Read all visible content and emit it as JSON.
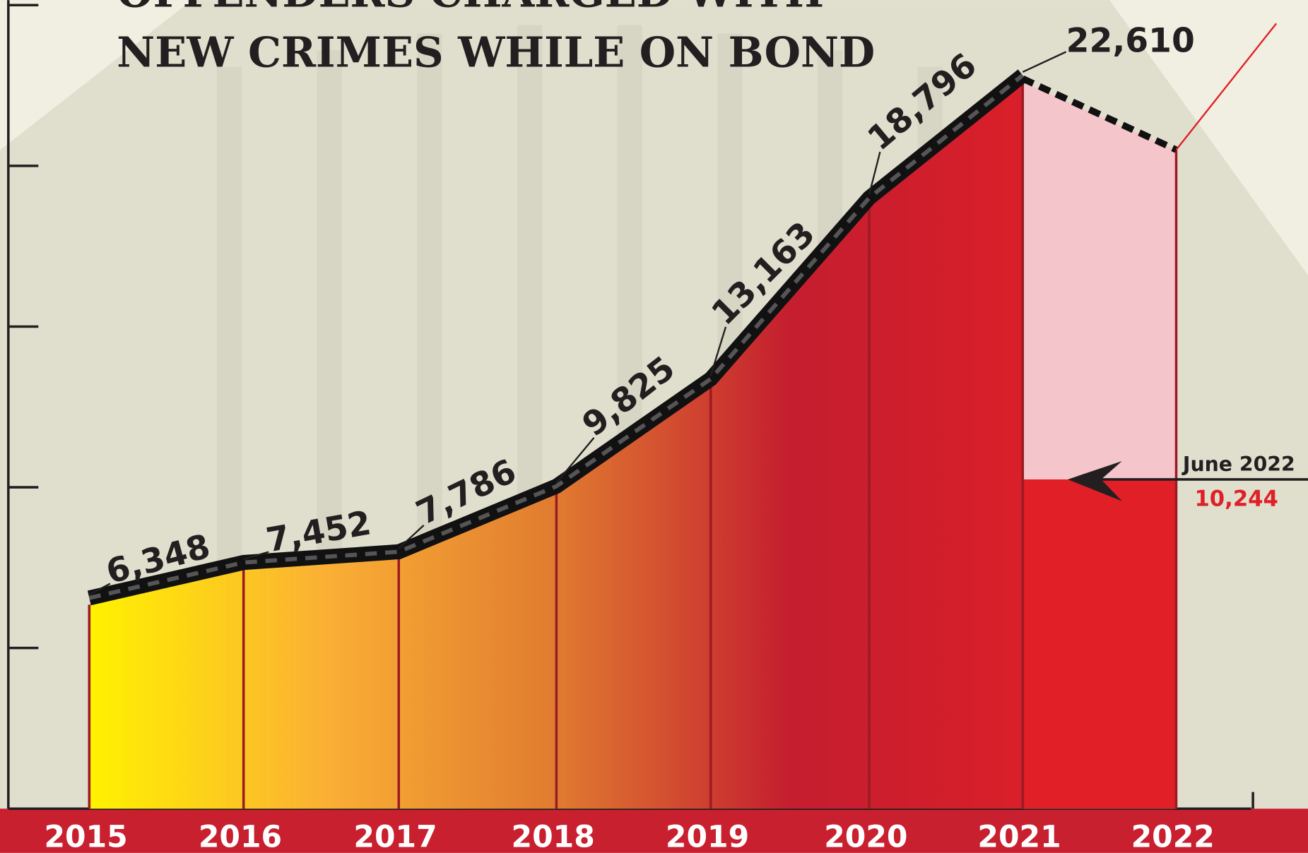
{
  "chart_data": {
    "type": "area",
    "title": "OFFENDERS CHARGED WITH",
    "subtitle": "NEW CRIMES WHILE ON BOND",
    "categories": [
      "2015",
      "2016",
      "2017",
      "2018",
      "2019",
      "2020",
      "2021",
      "2022"
    ],
    "values": [
      6348,
      7452,
      7786,
      9825,
      13163,
      18796,
      22610,
      null
    ],
    "value_labels": [
      "6,348",
      "7,452",
      "7,786",
      "9,825",
      "13,163",
      "18,796",
      "22,610",
      null
    ],
    "projected_value": 20500,
    "annotation": {
      "label": "June 2022",
      "value": 10244,
      "value_label": "10,244"
    },
    "ylim": [
      0,
      25000
    ],
    "yticks": [
      0,
      5000,
      10000,
      15000,
      20000,
      25000
    ],
    "gradient": [
      "#fff200",
      "#fbb034",
      "#e07b30",
      "#c41e2f",
      "#d91f2a"
    ],
    "projection_color": "#f4c6cc",
    "annotation_color": "#e01f26",
    "line_color": "#111111"
  }
}
